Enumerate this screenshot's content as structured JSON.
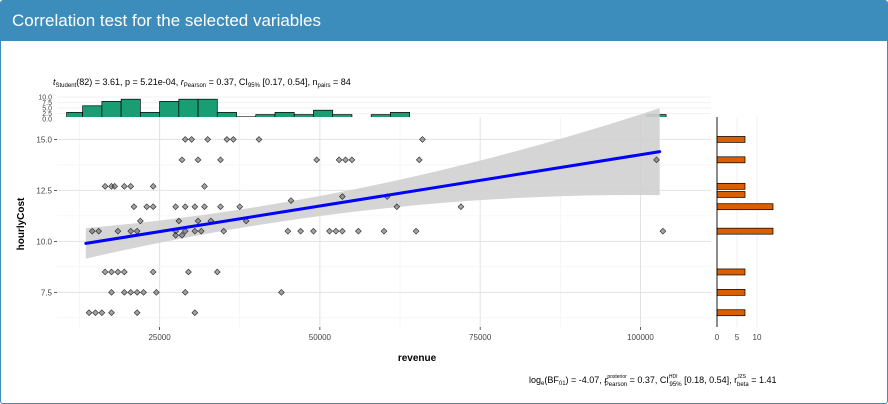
{
  "panel": {
    "title": "Correlation test for the selected variables",
    "header_color": "#3c8dbc"
  },
  "subtitle": {
    "t_sym": "t",
    "t_sub": "Student",
    "t_rest": "(82) = 3.61, p = 5.21e-04, ",
    "r_sym": "r",
    "r_sub": "Pearson",
    "r_rest": " = 0.37, CI",
    "ci_sub": "95%",
    "ci_rest": " [0.17, 0.54], n",
    "n_sub": "pairs",
    "n_rest": " = 84"
  },
  "caption": {
    "log_a": "log",
    "log_sub": "e",
    "log_b": "(BF",
    "bf_sub": "01",
    "log_c": ") = -4.07, ",
    "r_sym": "r",
    "r_sup": "posterior",
    "r_sub": "Pearson",
    "r_rest": " = 0.37, CI",
    "ci_sup": "HDI",
    "ci_sub": "95%",
    "ci_rest": " [0.18, 0.54], r",
    "rb_sup": "JZS",
    "rb_sub": "beta",
    "rb_rest": " = 1.41"
  },
  "chart_data": {
    "type": "scatter",
    "xlabel": "revenue",
    "ylabel": "hourlyCost",
    "xlim": [
      9000,
      111000
    ],
    "ylim": [
      5.8,
      16.1
    ],
    "x_ticks": [
      25000,
      50000,
      75000,
      100000
    ],
    "y_ticks": [
      7.5,
      10.0,
      12.5,
      15.0
    ],
    "grid": true,
    "points": [
      [
        14000,
        6.5
      ],
      [
        15000,
        6.5
      ],
      [
        16000,
        6.5
      ],
      [
        17500,
        6.5
      ],
      [
        21500,
        6.5
      ],
      [
        30500,
        6.5
      ],
      [
        17500,
        7.5
      ],
      [
        19500,
        7.5
      ],
      [
        20500,
        7.5
      ],
      [
        21500,
        7.5
      ],
      [
        22500,
        7.5
      ],
      [
        24500,
        7.5
      ],
      [
        29000,
        7.5
      ],
      [
        44000,
        7.5
      ],
      [
        16500,
        8.5
      ],
      [
        17500,
        8.5
      ],
      [
        18500,
        8.5
      ],
      [
        19500,
        8.5
      ],
      [
        24000,
        8.5
      ],
      [
        29500,
        8.5
      ],
      [
        34000,
        8.5
      ],
      [
        14500,
        10.5
      ],
      [
        15500,
        10.5
      ],
      [
        18500,
        10.5
      ],
      [
        20500,
        10.5
      ],
      [
        21500,
        10.5
      ],
      [
        27500,
        10.5
      ],
      [
        29000,
        10.5
      ],
      [
        30500,
        10.5
      ],
      [
        31500,
        10.5
      ],
      [
        35000,
        10.5
      ],
      [
        45000,
        10.5
      ],
      [
        47000,
        10.5
      ],
      [
        49000,
        10.5
      ],
      [
        51500,
        10.5
      ],
      [
        52500,
        10.5
      ],
      [
        53500,
        10.5
      ],
      [
        56000,
        10.5
      ],
      [
        60000,
        10.5
      ],
      [
        65000,
        10.5
      ],
      [
        27500,
        10.3
      ],
      [
        28500,
        10.3
      ],
      [
        103500,
        10.5
      ],
      [
        22000,
        11.0
      ],
      [
        28000,
        11.0
      ],
      [
        31000,
        11.0
      ],
      [
        33000,
        11.0
      ],
      [
        38500,
        11.0
      ],
      [
        21000,
        11.7
      ],
      [
        23000,
        11.7
      ],
      [
        24000,
        11.7
      ],
      [
        27500,
        11.7
      ],
      [
        29000,
        11.7
      ],
      [
        30500,
        11.7
      ],
      [
        32000,
        11.7
      ],
      [
        34500,
        11.7
      ],
      [
        37500,
        11.7
      ],
      [
        62000,
        11.7
      ],
      [
        72000,
        11.7
      ],
      [
        16500,
        12.7
      ],
      [
        17500,
        12.7
      ],
      [
        18000,
        12.7
      ],
      [
        19500,
        12.7
      ],
      [
        20500,
        12.7
      ],
      [
        24000,
        12.7
      ],
      [
        32000,
        12.7
      ],
      [
        45500,
        12.0
      ],
      [
        53500,
        12.2
      ],
      [
        60500,
        12.2
      ],
      [
        28500,
        14.0
      ],
      [
        31000,
        14.0
      ],
      [
        34500,
        14.0
      ],
      [
        49500,
        14.0
      ],
      [
        53000,
        14.0
      ],
      [
        54000,
        14.0
      ],
      [
        55000,
        14.0
      ],
      [
        65500,
        14.0
      ],
      [
        102500,
        14.0
      ],
      [
        29000,
        15.0
      ],
      [
        30000,
        15.0
      ],
      [
        32500,
        15.0
      ],
      [
        35500,
        15.0
      ],
      [
        36500,
        15.0
      ],
      [
        40500,
        15.0
      ],
      [
        66000,
        15.0
      ]
    ],
    "regression": {
      "x_start": 13500,
      "y_start": 9.9,
      "x_end": 103000,
      "y_end": 14.4
    },
    "x_histogram": {
      "bin_edges": [
        10500,
        13000,
        16000,
        19000,
        22000,
        25000,
        28000,
        31000,
        34000,
        37000,
        40000,
        43000,
        46000,
        49000,
        52000,
        55000,
        58000,
        61000,
        64000,
        67000,
        101000,
        104000
      ],
      "counts": [
        3,
        6,
        8,
        9,
        3,
        8,
        9,
        9,
        3,
        1,
        2,
        3,
        2,
        4,
        2,
        0,
        2,
        3,
        0,
        0,
        2
      ],
      "y_ticks": [
        0.0,
        2.5,
        5.0,
        7.5,
        10.0
      ],
      "color": "#189e72"
    },
    "y_histogram": {
      "centers": [
        6.5,
        7.5,
        8.5,
        10.5,
        11.0,
        11.7,
        12.3,
        12.7,
        14.0,
        15.0
      ],
      "counts": [
        7,
        7,
        7,
        14,
        0,
        14,
        7,
        7,
        7,
        7
      ],
      "x_ticks": [
        0,
        5,
        10
      ],
      "color": "#d95f02"
    },
    "line_color": "#0000ff",
    "band_color": "#d0d0d0"
  }
}
